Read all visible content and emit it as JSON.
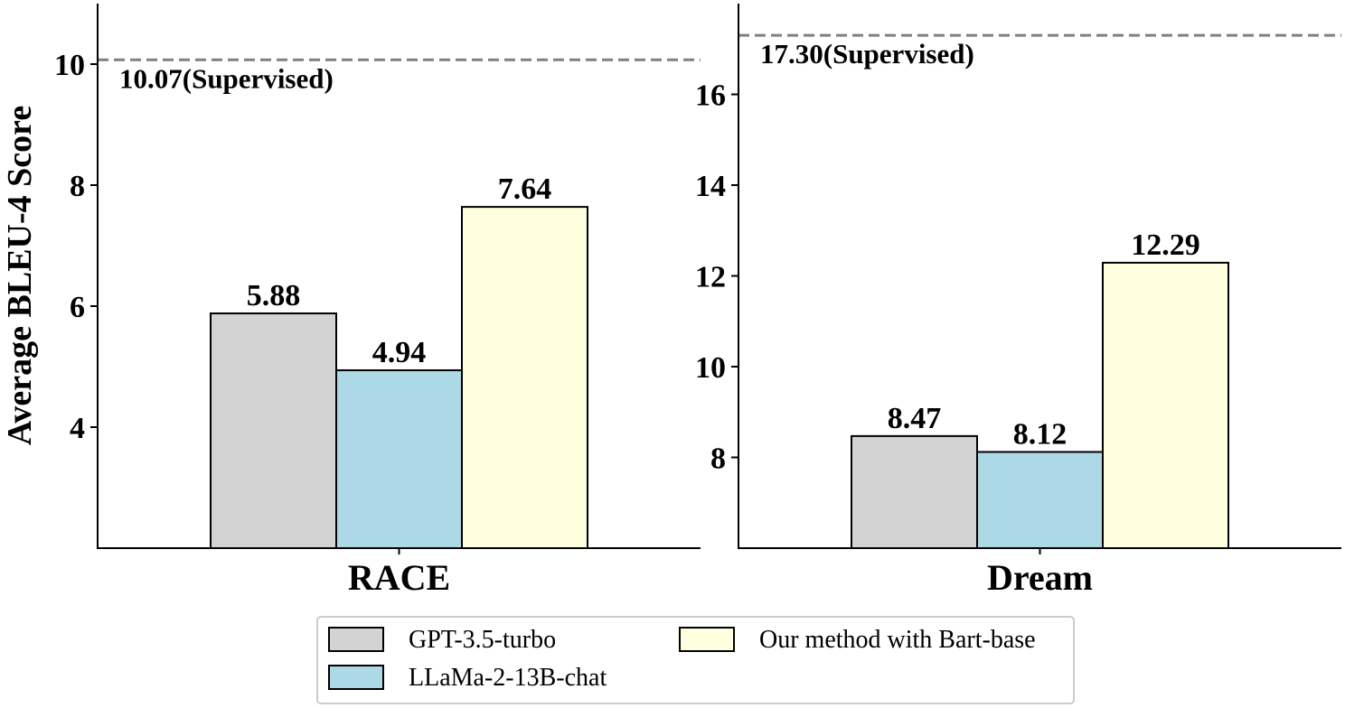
{
  "chart_data": {
    "type": "bar",
    "ylabel": "Average BLEU-4 Score",
    "series_styles": [
      {
        "name": "GPT-3.5-turbo",
        "color": "#d3d3d3"
      },
      {
        "name": "LLaMa-2-13B-chat",
        "color": "#add8e6"
      },
      {
        "name": "Our method with Bart-base",
        "color": "#ffffe0"
      }
    ],
    "legend": {
      "placement": "bottom-center",
      "entries": [
        "GPT-3.5-turbo",
        "LLaMa-2-13B-chat",
        "Our method with Bart-base"
      ]
    },
    "panels": [
      {
        "category": "RACE",
        "ylim": [
          2.0,
          11.0
        ],
        "yticks": [
          4,
          6,
          8,
          10
        ],
        "values": [
          5.88,
          4.94,
          7.64
        ],
        "value_labels": [
          "5.88",
          "4.94",
          "7.64"
        ],
        "reference": {
          "value": 10.07,
          "label": "10.07(Supervised)",
          "color": "#808080"
        }
      },
      {
        "category": "Dream",
        "ylim": [
          6.0,
          18.0
        ],
        "yticks": [
          8,
          10,
          12,
          14,
          16
        ],
        "values": [
          8.47,
          8.12,
          12.29
        ],
        "value_labels": [
          "8.47",
          "8.12",
          "12.29"
        ],
        "reference": {
          "value": 17.3,
          "label": "17.30(Supervised)",
          "color": "#808080"
        }
      }
    ],
    "grid": false
  }
}
